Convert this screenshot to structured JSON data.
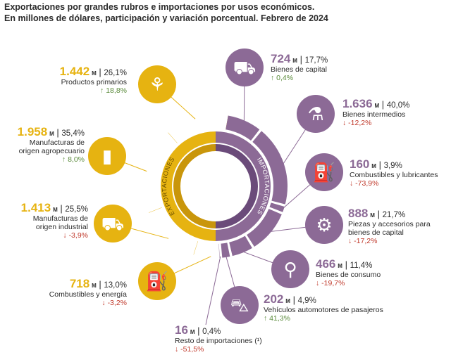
{
  "title_line1": "Exportaciones por grandes rubros e importaciones por usos económicos.",
  "title_line2": "En millones de dólares, participación y variación porcentual. Febrero de 2024",
  "ring_labels": {
    "exports": "EXPORTACIONES",
    "imports": "IMPORTACIONES"
  },
  "colors": {
    "exports": "#e6b311",
    "exports_dark": "#c9960b",
    "imports": "#8c6a96",
    "imports_dark": "#6b4b7a",
    "up": "#5a8a3a",
    "down": "#c0392b"
  },
  "chart_data": {
    "type": "pie",
    "unit": "M",
    "series": [
      {
        "name": "EXPORTACIONES",
        "items": [
          {
            "name": "Productos primarios",
            "value": "1.442",
            "value_num": 1442,
            "share": "26,1%",
            "var": "18,8%",
            "dir": "up",
            "icon": "wheat-icon"
          },
          {
            "name_lines": [
              "Manufacturas de",
              "origen agropecuario"
            ],
            "value": "1.958",
            "value_num": 1958,
            "share": "35,4%",
            "var": "8,0%",
            "dir": "up",
            "icon": "bottle-icon"
          },
          {
            "name_lines": [
              "Manufacturas de",
              "origen industrial"
            ],
            "value": "1.413",
            "value_num": 1413,
            "share": "25,5%",
            "var": "-3,9%",
            "dir": "down",
            "icon": "truck-icon"
          },
          {
            "name": "Combustibles y energía",
            "value": "718",
            "value_num": 718,
            "share": "13,0%",
            "var": "-3,2%",
            "dir": "down",
            "icon": "oil-barrel-icon"
          }
        ]
      },
      {
        "name": "IMPORTACIONES",
        "items": [
          {
            "name": "Bienes de capital",
            "value": "724",
            "value_num": 724,
            "share": "17,7%",
            "var": "0,4%",
            "dir": "up",
            "icon": "tractor-icon"
          },
          {
            "name": "Bienes intermedios",
            "value": "1.636",
            "value_num": 1636,
            "share": "40,0%",
            "var": "-12,2%",
            "dir": "down",
            "icon": "flask-icon"
          },
          {
            "name": "Combustibles y lubricantes",
            "value": "160",
            "value_num": 160,
            "share": "3,9%",
            "var": "-73,9%",
            "dir": "down",
            "icon": "jerrycan-icon"
          },
          {
            "name_lines": [
              "Piezas y accesorios para",
              "bienes de capital"
            ],
            "value": "888",
            "value_num": 888,
            "share": "21,7%",
            "var": "-17,2%",
            "dir": "down",
            "icon": "bolt-icon"
          },
          {
            "name": "Bienes de consumo",
            "value": "466",
            "value_num": 466,
            "share": "11,4%",
            "var": "-19,7%",
            "dir": "down",
            "icon": "bicycle-icon"
          },
          {
            "name": "Vehículos automotores de pasajeros",
            "value": "202",
            "value_num": 202,
            "share": "4,9%",
            "var": "41,3%",
            "dir": "up",
            "icon": "car-icon"
          },
          {
            "name": "Resto de importaciones (¹)",
            "value": "16",
            "value_num": 16,
            "share": "0,4%",
            "var": "-51,5%",
            "dir": "down",
            "icon": ""
          }
        ]
      }
    ]
  }
}
